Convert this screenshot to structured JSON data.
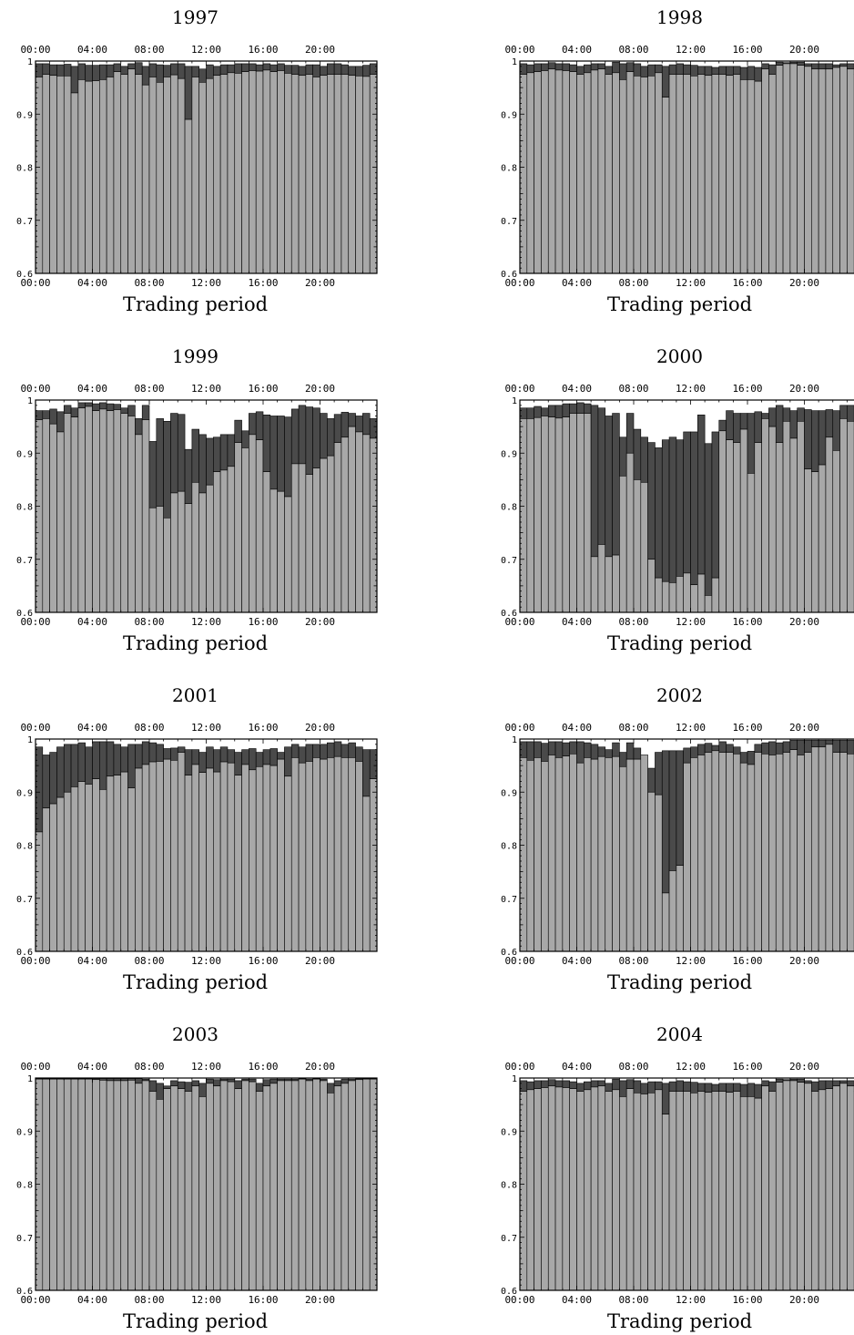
{
  "chart_data": [
    {
      "type": "bar",
      "title": "1997",
      "xlabel": "Trading period",
      "x_tick_labels": [
        "00:00",
        "04:00",
        "08:00",
        "12:00",
        "16:00",
        "20:00"
      ],
      "y_tick_labels": [
        "0.6",
        "0.7",
        "0.8",
        "0.9",
        "1"
      ],
      "ylim": [
        0.6,
        1.0
      ],
      "colors": {
        "light": "#a8a8a8",
        "dark": "#4a4a4a"
      },
      "series": [
        {
          "values": [
            0.97,
            0.975,
            0.973,
            0.972,
            0.972,
            0.94,
            0.965,
            0.962,
            0.963,
            0.965,
            0.97,
            0.98,
            0.975,
            0.985,
            0.975,
            0.955,
            0.97,
            0.96,
            0.97,
            0.974,
            0.967,
            0.89,
            0.97,
            0.96,
            0.967,
            0.973,
            0.975,
            0.978,
            0.977,
            0.98,
            0.982,
            0.981,
            0.983,
            0.98,
            0.982,
            0.977,
            0.975,
            0.973,
            0.975,
            0.97,
            0.973,
            0.975,
            0.975,
            0.975,
            0.973,
            0.972,
            0.971,
            0.975
          ]
        },
        {
          "values": [
            0.995,
            0.995,
            0.993,
            0.993,
            0.994,
            0.99,
            0.995,
            0.992,
            0.992,
            0.993,
            0.993,
            0.995,
            0.99,
            0.995,
            0.997,
            0.99,
            0.995,
            0.993,
            0.992,
            0.995,
            0.995,
            0.99,
            0.99,
            0.985,
            0.993,
            0.99,
            0.993,
            0.993,
            0.995,
            0.995,
            0.995,
            0.993,
            0.995,
            0.993,
            0.995,
            0.992,
            0.992,
            0.99,
            0.993,
            0.993,
            0.99,
            0.995,
            0.995,
            0.993,
            0.99,
            0.99,
            0.992,
            0.995
          ]
        }
      ]
    },
    {
      "type": "bar",
      "title": "1998",
      "xlabel": "Trading period",
      "x_tick_labels": [
        "00:00",
        "04:00",
        "08:00",
        "12:00",
        "16:00",
        "20:00"
      ],
      "y_tick_labels": [
        "0.6",
        "0.7",
        "0.8",
        "0.9",
        "1"
      ],
      "ylim": [
        0.6,
        1.0
      ],
      "colors": {
        "light": "#a8a8a8",
        "dark": "#4a4a4a"
      },
      "series": [
        {
          "values": [
            0.975,
            0.978,
            0.98,
            0.982,
            0.985,
            0.983,
            0.982,
            0.98,
            0.975,
            0.978,
            0.983,
            0.985,
            0.975,
            0.978,
            0.965,
            0.98,
            0.972,
            0.97,
            0.972,
            0.978,
            0.932,
            0.975,
            0.975,
            0.975,
            0.972,
            0.975,
            0.973,
            0.975,
            0.975,
            0.973,
            0.975,
            0.965,
            0.965,
            0.962,
            0.985,
            0.975,
            0.992,
            0.995,
            0.995,
            0.992,
            0.99,
            0.985,
            0.985,
            0.985,
            0.988,
            0.99,
            0.985,
            0.975
          ]
        },
        {
          "values": [
            0.995,
            0.993,
            0.995,
            0.995,
            0.997,
            0.995,
            0.995,
            0.993,
            0.99,
            0.993,
            0.995,
            0.995,
            0.99,
            0.998,
            0.995,
            0.997,
            0.995,
            0.99,
            0.993,
            0.993,
            0.99,
            0.993,
            0.995,
            0.993,
            0.992,
            0.99,
            0.99,
            0.988,
            0.99,
            0.99,
            0.99,
            0.988,
            0.99,
            0.988,
            0.995,
            0.993,
            0.998,
            0.997,
            0.998,
            0.998,
            0.995,
            0.995,
            0.995,
            0.995,
            0.993,
            0.995,
            0.995,
            0.995
          ]
        }
      ]
    },
    {
      "type": "bar",
      "title": "1999",
      "xlabel": "Trading period",
      "x_tick_labels": [
        "00:00",
        "04:00",
        "08:00",
        "12:00",
        "16:00",
        "20:00"
      ],
      "y_tick_labels": [
        "0.6",
        "0.7",
        "0.8",
        "0.9",
        "1"
      ],
      "ylim": [
        0.6,
        1.0
      ],
      "colors": {
        "light": "#a8a8a8",
        "dark": "#4a4a4a"
      },
      "series": [
        {
          "values": [
            0.963,
            0.965,
            0.955,
            0.94,
            0.975,
            0.968,
            0.985,
            0.988,
            0.98,
            0.983,
            0.98,
            0.982,
            0.975,
            0.97,
            0.935,
            0.963,
            0.797,
            0.8,
            0.778,
            0.825,
            0.828,
            0.805,
            0.845,
            0.825,
            0.84,
            0.865,
            0.868,
            0.875,
            0.92,
            0.91,
            0.935,
            0.925,
            0.865,
            0.832,
            0.828,
            0.818,
            0.88,
            0.88,
            0.86,
            0.872,
            0.89,
            0.895,
            0.92,
            0.93,
            0.95,
            0.94,
            0.935,
            0.928
          ]
        },
        {
          "values": [
            0.98,
            0.98,
            0.983,
            0.978,
            0.99,
            0.985,
            0.995,
            0.995,
            0.993,
            0.995,
            0.993,
            0.992,
            0.985,
            0.99,
            0.965,
            0.99,
            0.922,
            0.965,
            0.96,
            0.975,
            0.973,
            0.907,
            0.945,
            0.935,
            0.928,
            0.93,
            0.935,
            0.935,
            0.962,
            0.942,
            0.975,
            0.978,
            0.972,
            0.97,
            0.97,
            0.968,
            0.983,
            0.99,
            0.987,
            0.985,
            0.975,
            0.965,
            0.973,
            0.977,
            0.975,
            0.97,
            0.975,
            0.965
          ]
        }
      ]
    },
    {
      "type": "bar",
      "title": "2000",
      "xlabel": "Trading period",
      "x_tick_labels": [
        "00:00",
        "04:00",
        "08:00",
        "12:00",
        "16:00",
        "20:00"
      ],
      "y_tick_labels": [
        "0.6",
        "0.7",
        "0.8",
        "0.9",
        "1"
      ],
      "ylim": [
        0.6,
        1.0
      ],
      "colors": {
        "light": "#a8a8a8",
        "dark": "#4a4a4a"
      },
      "series": [
        {
          "values": [
            0.965,
            0.965,
            0.967,
            0.97,
            0.968,
            0.966,
            0.968,
            0.975,
            0.975,
            0.975,
            0.705,
            0.728,
            0.705,
            0.708,
            0.857,
            0.9,
            0.85,
            0.845,
            0.7,
            0.665,
            0.658,
            0.656,
            0.668,
            0.674,
            0.652,
            0.672,
            0.632,
            0.665,
            0.942,
            0.925,
            0.92,
            0.945,
            0.862,
            0.92,
            0.965,
            0.95,
            0.92,
            0.96,
            0.928,
            0.96,
            0.87,
            0.865,
            0.878,
            0.93,
            0.905,
            0.965,
            0.96,
            0.945
          ]
        },
        {
          "values": [
            0.985,
            0.985,
            0.988,
            0.985,
            0.99,
            0.99,
            0.993,
            0.993,
            0.995,
            0.993,
            0.99,
            0.985,
            0.97,
            0.975,
            0.93,
            0.975,
            0.945,
            0.93,
            0.92,
            0.91,
            0.925,
            0.93,
            0.925,
            0.94,
            0.94,
            0.972,
            0.918,
            0.94,
            0.962,
            0.98,
            0.975,
            0.975,
            0.975,
            0.978,
            0.975,
            0.985,
            0.99,
            0.985,
            0.98,
            0.985,
            0.982,
            0.98,
            0.98,
            0.982,
            0.98,
            0.99,
            0.99,
            0.99
          ]
        }
      ]
    },
    {
      "type": "bar",
      "title": "2001",
      "xlabel": "Trading period",
      "x_tick_labels": [
        "00:00",
        "04:00",
        "08:00",
        "12:00",
        "16:00",
        "20:00"
      ],
      "y_tick_labels": [
        "0.6",
        "0.7",
        "0.8",
        "0.9",
        "1"
      ],
      "ylim": [
        0.6,
        1.0
      ],
      "colors": {
        "light": "#a8a8a8",
        "dark": "#4a4a4a"
      },
      "series": [
        {
          "values": [
            0.825,
            0.87,
            0.878,
            0.89,
            0.9,
            0.91,
            0.92,
            0.915,
            0.925,
            0.905,
            0.93,
            0.932,
            0.938,
            0.908,
            0.945,
            0.952,
            0.957,
            0.958,
            0.962,
            0.96,
            0.975,
            0.932,
            0.952,
            0.937,
            0.945,
            0.938,
            0.957,
            0.955,
            0.932,
            0.952,
            0.942,
            0.948,
            0.952,
            0.95,
            0.962,
            0.93,
            0.965,
            0.955,
            0.958,
            0.965,
            0.962,
            0.965,
            0.967,
            0.965,
            0.965,
            0.958,
            0.892,
            0.925
          ]
        },
        {
          "values": [
            0.985,
            0.97,
            0.975,
            0.985,
            0.99,
            0.99,
            0.993,
            0.985,
            0.995,
            0.995,
            0.995,
            0.99,
            0.985,
            0.99,
            0.99,
            0.995,
            0.993,
            0.99,
            0.982,
            0.983,
            0.985,
            0.98,
            0.98,
            0.975,
            0.985,
            0.98,
            0.985,
            0.98,
            0.975,
            0.98,
            0.982,
            0.975,
            0.98,
            0.982,
            0.975,
            0.985,
            0.99,
            0.985,
            0.99,
            0.99,
            0.99,
            0.993,
            0.995,
            0.99,
            0.993,
            0.985,
            0.98,
            0.98
          ]
        }
      ]
    },
    {
      "type": "bar",
      "title": "2002",
      "xlabel": "Trading period",
      "x_tick_labels": [
        "00:00",
        "04:00",
        "08:00",
        "12:00",
        "16:00",
        "20:00"
      ],
      "y_tick_labels": [
        "0.6",
        "0.7",
        "0.8",
        "0.9",
        "1"
      ],
      "ylim": [
        0.6,
        1.0
      ],
      "colors": {
        "light": "#a8a8a8",
        "dark": "#4a4a4a"
      },
      "series": [
        {
          "values": [
            0.965,
            0.96,
            0.965,
            0.958,
            0.97,
            0.965,
            0.968,
            0.972,
            0.955,
            0.965,
            0.962,
            0.967,
            0.965,
            0.967,
            0.948,
            0.962,
            0.962,
            0.97,
            0.9,
            0.895,
            0.71,
            0.752,
            0.762,
            0.955,
            0.965,
            0.97,
            0.975,
            0.978,
            0.975,
            0.975,
            0.972,
            0.955,
            0.952,
            0.975,
            0.972,
            0.97,
            0.972,
            0.975,
            0.98,
            0.97,
            0.975,
            0.985,
            0.985,
            0.99,
            0.975,
            0.975,
            0.972,
            0.975
          ]
        },
        {
          "values": [
            0.995,
            0.995,
            0.995,
            0.992,
            0.995,
            0.995,
            0.993,
            0.995,
            0.995,
            0.993,
            0.99,
            0.985,
            0.98,
            0.993,
            0.975,
            0.993,
            0.983,
            0.97,
            0.945,
            0.975,
            0.978,
            0.978,
            0.978,
            0.983,
            0.985,
            0.99,
            0.992,
            0.988,
            0.995,
            0.99,
            0.985,
            0.975,
            0.977,
            0.99,
            0.993,
            0.995,
            0.993,
            0.995,
            0.998,
            0.998,
            0.998,
            0.998,
            0.998,
            0.998,
            0.998,
            0.998,
            0.998,
            0.998
          ]
        }
      ]
    },
    {
      "type": "bar",
      "title": "2003",
      "xlabel": "Trading period",
      "x_tick_labels": [
        "00:00",
        "04:00",
        "08:00",
        "12:00",
        "16:00",
        "20:00"
      ],
      "y_tick_labels": [
        "0.6",
        "0.7",
        "0.8",
        "0.9",
        "1"
      ],
      "ylim": [
        0.6,
        1.0
      ],
      "colors": {
        "light": "#a8a8a8",
        "dark": "#4a4a4a"
      },
      "series": [
        {
          "values": [
            0.998,
            0.998,
            0.998,
            0.998,
            0.998,
            0.998,
            0.998,
            0.998,
            0.997,
            0.996,
            0.995,
            0.995,
            0.995,
            0.996,
            0.99,
            0.995,
            0.975,
            0.96,
            0.98,
            0.985,
            0.98,
            0.975,
            0.985,
            0.965,
            0.99,
            0.985,
            0.995,
            0.993,
            0.98,
            0.995,
            0.993,
            0.975,
            0.985,
            0.99,
            0.995,
            0.995,
            0.995,
            0.998,
            0.995,
            0.998,
            0.995,
            0.972,
            0.985,
            0.99,
            0.995,
            0.997,
            0.998,
            0.998
          ]
        },
        {
          "values": [
            0.999,
            0.999,
            0.999,
            0.999,
            0.999,
            0.999,
            0.999,
            0.999,
            0.999,
            0.999,
            0.999,
            0.999,
            0.999,
            0.999,
            0.999,
            0.998,
            0.995,
            0.99,
            0.985,
            0.995,
            0.993,
            0.992,
            0.995,
            0.99,
            0.998,
            0.997,
            0.998,
            0.998,
            0.995,
            0.998,
            0.998,
            0.99,
            0.997,
            0.998,
            0.998,
            0.998,
            0.998,
            0.999,
            0.998,
            0.999,
            0.998,
            0.99,
            0.995,
            0.998,
            0.998,
            0.999,
            0.999,
            0.999
          ]
        }
      ]
    },
    {
      "type": "bar",
      "title": "2004",
      "xlabel": "Trading period",
      "x_tick_labels": [
        "00:00",
        "04:00",
        "08:00",
        "12:00",
        "16:00",
        "20:00"
      ],
      "y_tick_labels": [
        "0.6",
        "0.7",
        "0.8",
        "0.9",
        "1"
      ],
      "ylim": [
        0.6,
        1.0
      ],
      "colors": {
        "light": "#a8a8a8",
        "dark": "#4a4a4a"
      },
      "series": [
        {
          "values": [
            0.975,
            0.978,
            0.98,
            0.982,
            0.985,
            0.983,
            0.982,
            0.98,
            0.975,
            0.978,
            0.983,
            0.985,
            0.975,
            0.978,
            0.965,
            0.98,
            0.972,
            0.97,
            0.972,
            0.978,
            0.932,
            0.975,
            0.975,
            0.975,
            0.972,
            0.975,
            0.973,
            0.975,
            0.975,
            0.973,
            0.975,
            0.965,
            0.965,
            0.962,
            0.985,
            0.975,
            0.992,
            0.995,
            0.995,
            0.992,
            0.99,
            0.975,
            0.978,
            0.98,
            0.985,
            0.99,
            0.985,
            0.975
          ]
        },
        {
          "values": [
            0.995,
            0.993,
            0.995,
            0.995,
            0.997,
            0.995,
            0.995,
            0.993,
            0.99,
            0.993,
            0.995,
            0.995,
            0.99,
            0.998,
            0.995,
            0.997,
            0.995,
            0.99,
            0.993,
            0.993,
            0.99,
            0.993,
            0.995,
            0.993,
            0.992,
            0.99,
            0.99,
            0.988,
            0.99,
            0.99,
            0.99,
            0.988,
            0.99,
            0.988,
            0.995,
            0.993,
            0.998,
            0.997,
            0.998,
            0.998,
            0.995,
            0.993,
            0.995,
            0.995,
            0.995,
            0.995,
            0.995,
            0.993
          ]
        }
      ]
    }
  ]
}
